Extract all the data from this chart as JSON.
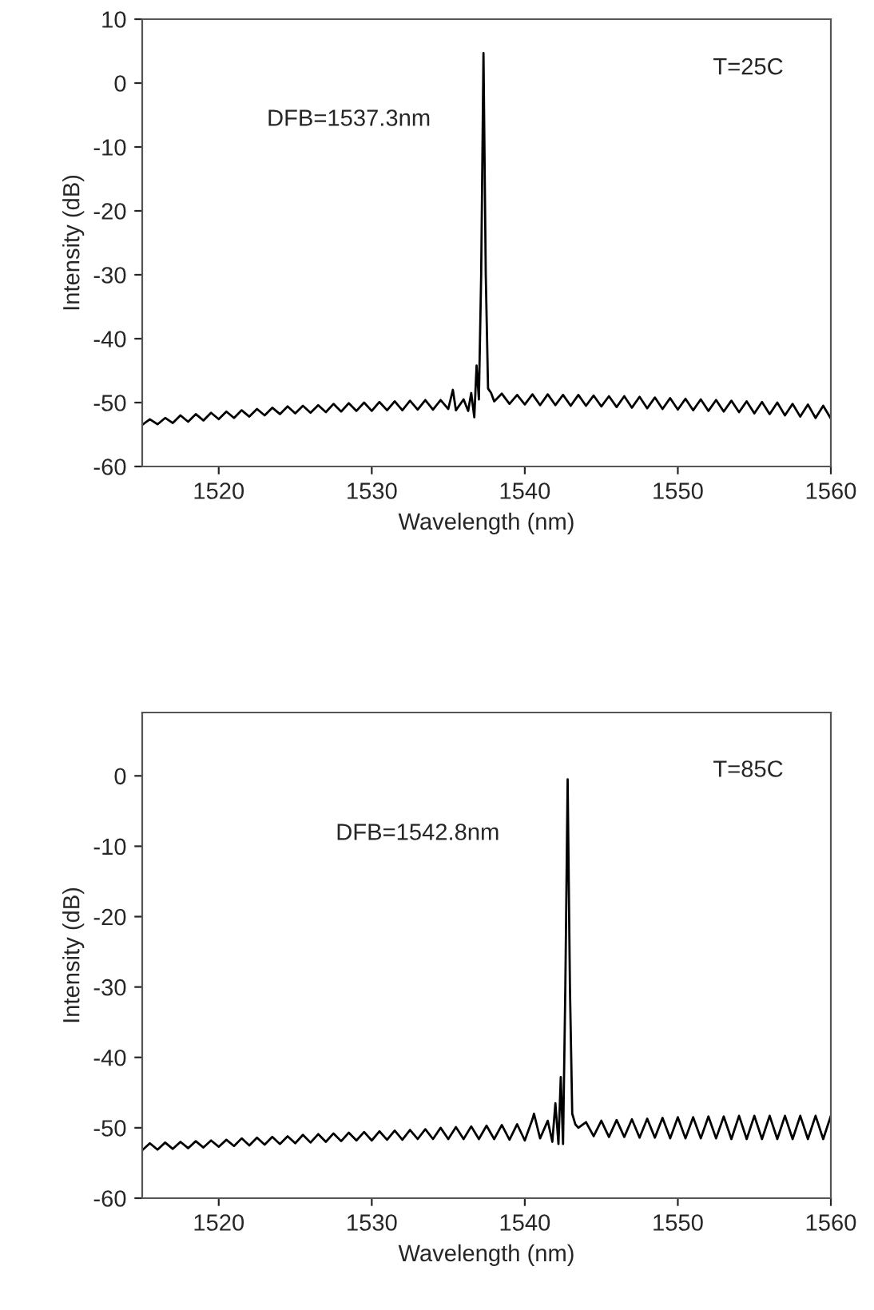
{
  "chart_data": [
    {
      "type": "line",
      "xlabel": "Wavelength (nm)",
      "ylabel": "Intensity (dB)",
      "xlim": [
        1515,
        1560
      ],
      "xticks": [
        1520,
        1530,
        1540,
        1550,
        1560
      ],
      "ylim": [
        -60,
        10
      ],
      "yticks": [
        -60,
        -50,
        -40,
        -30,
        -20,
        -10,
        0,
        10
      ],
      "grid": false,
      "legend": false,
      "marker": "none",
      "line_style": "solid",
      "annotations": [
        "DFB=1537.3nm",
        "T=25C"
      ],
      "series": [
        {
          "color": "#000000",
          "x": [
            1515,
            1515.5,
            1516,
            1516.5,
            1517,
            1517.5,
            1518,
            1518.5,
            1519,
            1519.5,
            1520,
            1520.5,
            1521,
            1521.5,
            1522,
            1522.5,
            1523,
            1523.5,
            1524,
            1524.5,
            1525,
            1525.5,
            1526,
            1526.5,
            1527,
            1527.5,
            1528,
            1528.5,
            1529,
            1529.5,
            1530,
            1530.5,
            1531,
            1531.5,
            1532,
            1532.5,
            1533,
            1533.5,
            1534,
            1534.5,
            1535,
            1535.3,
            1535.5,
            1536,
            1536.3,
            1536.5,
            1536.7,
            1536.85,
            1537.0,
            1537.15,
            1537.3,
            1537.45,
            1537.6,
            1537.8,
            1538,
            1538.5,
            1539,
            1539.5,
            1540,
            1540.5,
            1541,
            1541.5,
            1542,
            1542.5,
            1543,
            1543.5,
            1544,
            1544.5,
            1545,
            1545.5,
            1546,
            1546.5,
            1547,
            1547.5,
            1548,
            1548.5,
            1549,
            1549.5,
            1550,
            1550.5,
            1551,
            1551.5,
            1552,
            1552.5,
            1553,
            1553.5,
            1554,
            1554.5,
            1555,
            1555.5,
            1556,
            1556.5,
            1557,
            1557.5,
            1558,
            1558.5,
            1559,
            1559.5,
            1560
          ],
          "values": [
            -53.5,
            -52.6,
            -53.4,
            -52.4,
            -53.2,
            -52.0,
            -53.0,
            -51.8,
            -52.8,
            -51.6,
            -52.6,
            -51.4,
            -52.4,
            -51.2,
            -52.2,
            -51.0,
            -52.0,
            -50.8,
            -51.8,
            -50.6,
            -51.7,
            -50.5,
            -51.6,
            -50.4,
            -51.5,
            -50.2,
            -51.4,
            -50.1,
            -51.3,
            -50.0,
            -51.3,
            -49.9,
            -51.2,
            -49.8,
            -51.2,
            -49.7,
            -51.1,
            -49.6,
            -51.1,
            -49.6,
            -51.0,
            -48.0,
            -51.2,
            -49.5,
            -51.3,
            -48.5,
            -52.3,
            -44.2,
            -49.5,
            -30,
            4.7,
            -30,
            -47.8,
            -48.5,
            -49.8,
            -48.6,
            -50.2,
            -48.8,
            -50.3,
            -48.7,
            -50.4,
            -48.7,
            -50.4,
            -48.8,
            -50.5,
            -48.8,
            -50.5,
            -48.9,
            -50.6,
            -49.0,
            -50.7,
            -49.0,
            -50.8,
            -49.1,
            -50.9,
            -49.2,
            -51.0,
            -49.3,
            -51.1,
            -49.4,
            -51.2,
            -49.5,
            -51.3,
            -49.6,
            -51.4,
            -49.7,
            -51.5,
            -49.8,
            -51.7,
            -49.9,
            -51.8,
            -50.0,
            -52.0,
            -50.2,
            -52.2,
            -50.3,
            -52.4,
            -50.5,
            -52.5
          ]
        }
      ]
    },
    {
      "type": "line",
      "xlabel": "Wavelength (nm)",
      "ylabel": "Intensity (dB)",
      "xlim": [
        1515,
        1560
      ],
      "xticks": [
        1520,
        1530,
        1540,
        1550,
        1560
      ],
      "ylim": [
        -60,
        9
      ],
      "yticks": [
        -60,
        -50,
        -40,
        -30,
        -20,
        -10,
        0
      ],
      "grid": false,
      "legend": false,
      "marker": "none",
      "line_style": "solid",
      "annotations": [
        "DFB=1542.8nm",
        "T=85C"
      ],
      "series": [
        {
          "color": "#000000",
          "x": [
            1515,
            1515.5,
            1516,
            1516.5,
            1517,
            1517.5,
            1518,
            1518.5,
            1519,
            1519.5,
            1520,
            1520.5,
            1521,
            1521.5,
            1522,
            1522.5,
            1523,
            1523.5,
            1524,
            1524.5,
            1525,
            1525.5,
            1526,
            1526.5,
            1527,
            1527.5,
            1528,
            1528.5,
            1529,
            1529.5,
            1530,
            1530.5,
            1531,
            1531.5,
            1532,
            1532.5,
            1533,
            1533.5,
            1534,
            1534.5,
            1535,
            1535.5,
            1536,
            1536.5,
            1537,
            1537.5,
            1538,
            1538.5,
            1539,
            1539.5,
            1540,
            1540.5,
            1540.6,
            1541,
            1541.5,
            1541.8,
            1542.0,
            1542.2,
            1542.35,
            1542.5,
            1542.65,
            1542.8,
            1542.95,
            1543.1,
            1543.3,
            1543.5,
            1544,
            1544.5,
            1545,
            1545.5,
            1546,
            1546.5,
            1547,
            1547.5,
            1548,
            1548.5,
            1549,
            1549.5,
            1550,
            1550.5,
            1551,
            1551.5,
            1552,
            1552.5,
            1553,
            1553.5,
            1554,
            1554.5,
            1555,
            1555.5,
            1556,
            1556.5,
            1557,
            1557.5,
            1558,
            1558.5,
            1559,
            1559.5,
            1560
          ],
          "values": [
            -53.2,
            -52.2,
            -53.1,
            -52.1,
            -53.0,
            -52.0,
            -52.9,
            -51.9,
            -52.8,
            -51.8,
            -52.7,
            -51.7,
            -52.6,
            -51.5,
            -52.5,
            -51.4,
            -52.4,
            -51.3,
            -52.3,
            -51.2,
            -52.2,
            -51.0,
            -52.1,
            -50.9,
            -52.0,
            -50.8,
            -51.9,
            -50.7,
            -51.8,
            -50.6,
            -51.8,
            -50.5,
            -51.7,
            -50.4,
            -51.7,
            -50.3,
            -51.6,
            -50.2,
            -51.6,
            -50.0,
            -51.6,
            -49.9,
            -51.6,
            -49.8,
            -51.6,
            -49.7,
            -51.6,
            -49.6,
            -51.7,
            -49.5,
            -51.8,
            -48.8,
            -48.0,
            -51.5,
            -49.0,
            -52.0,
            -46.5,
            -52.3,
            -42.8,
            -52.3,
            -30,
            -0.5,
            -30,
            -48.0,
            -49.5,
            -50.0,
            -49.2,
            -51.2,
            -49.0,
            -51.3,
            -48.9,
            -51.3,
            -48.8,
            -51.4,
            -48.7,
            -51.4,
            -48.6,
            -51.5,
            -48.5,
            -51.5,
            -48.5,
            -51.5,
            -48.4,
            -51.5,
            -48.4,
            -51.6,
            -48.3,
            -51.6,
            -48.3,
            -51.6,
            -48.3,
            -51.6,
            -48.3,
            -51.6,
            -48.3,
            -51.6,
            -48.3,
            -51.6,
            -48.3
          ]
        }
      ]
    }
  ]
}
